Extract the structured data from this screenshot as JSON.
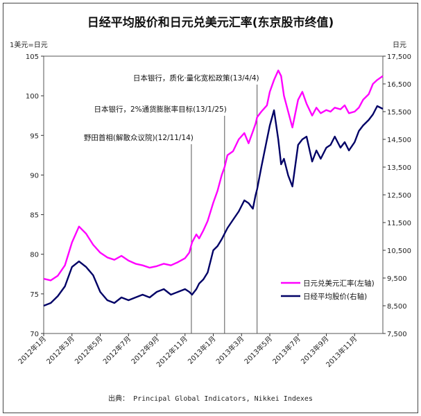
{
  "title": "日经平均股价和日元兑美元汇率(东京股市终值)",
  "source": "出典： Principal Global Indicators, Nikkei Indexes",
  "chart_data": {
    "type": "line",
    "left_axis": {
      "unit": "1美元=日元",
      "min": 70,
      "max": 105,
      "ticks": [
        70,
        75,
        80,
        85,
        90,
        95,
        100,
        105
      ],
      "tick_labels": [
        "70",
        "75",
        "80",
        "85",
        "90",
        "95",
        "100",
        "105"
      ]
    },
    "right_axis": {
      "unit": "日元",
      "min": 7500,
      "max": 17500,
      "ticks": [
        7500,
        8500,
        9500,
        10500,
        11500,
        12500,
        13500,
        14500,
        15500,
        16500,
        17500
      ],
      "tick_labels": [
        "7,500",
        "8,500",
        "9,500",
        "10,500",
        "11,500",
        "12,500",
        "13,500",
        "14,500",
        "15,500",
        "16,500",
        "17,500"
      ]
    },
    "x_axis": {
      "min": 0,
      "max": 24,
      "ticks": [
        0,
        2,
        4,
        6,
        8,
        10,
        12,
        14,
        16,
        18,
        20,
        22
      ],
      "tick_labels": [
        "2012年1月",
        "2012年3月",
        "2012年5月",
        "2012年7月",
        "2012年9月",
        "2012年11月",
        "2013年1月",
        "2013年3月",
        "2013年5月",
        "2013年7月",
        "2013年9月",
        "2013年11月"
      ]
    },
    "annotations": [
      {
        "x": 10.45,
        "label": "野田首相(解散众议院)(12/11/14)"
      },
      {
        "x": 12.8,
        "label": "日本银行，2%通货膨胀率目标(13/1/25)"
      },
      {
        "x": 15.1,
        "label": "日本银行，质化·量化宽松政策(13/4/4)"
      }
    ],
    "series": [
      {
        "name": "日元兑美元汇率(左轴)",
        "axis": "left",
        "color": "#ff00ff",
        "x": [
          0,
          0.5,
          1.0,
          1.5,
          2.0,
          2.5,
          3.0,
          3.5,
          4.0,
          4.5,
          5.0,
          5.5,
          6.0,
          6.5,
          7.0,
          7.5,
          8.0,
          8.5,
          9.0,
          9.5,
          10.0,
          10.3,
          10.5,
          10.8,
          11.0,
          11.3,
          11.6,
          12.0,
          12.3,
          12.6,
          12.8,
          13.0,
          13.4,
          13.8,
          14.2,
          14.5,
          14.8,
          15.0,
          15.1,
          15.4,
          15.8,
          16.0,
          16.3,
          16.6,
          16.8,
          17.0,
          17.3,
          17.6,
          18.0,
          18.3,
          18.6,
          19.0,
          19.3,
          19.6,
          20.0,
          20.3,
          20.6,
          21.0,
          21.3,
          21.6,
          22.0,
          22.3,
          22.6,
          23.0,
          23.3,
          23.6,
          24.0
        ],
        "values": [
          76.9,
          76.7,
          77.3,
          78.6,
          81.5,
          83.5,
          82.6,
          81.2,
          80.2,
          79.6,
          79.3,
          79.8,
          79.2,
          78.8,
          78.6,
          78.3,
          78.5,
          78.8,
          78.6,
          79.0,
          79.5,
          80.2,
          81.5,
          82.5,
          82.0,
          83.0,
          84.2,
          86.5,
          88.0,
          90.0,
          91.0,
          92.5,
          93.0,
          94.5,
          95.3,
          94.0,
          95.5,
          96.5,
          97.3,
          98.0,
          98.8,
          100.5,
          102.0,
          103.2,
          102.5,
          100.0,
          98.0,
          96.0,
          99.5,
          100.5,
          99.0,
          97.5,
          98.5,
          97.8,
          98.2,
          98.0,
          98.5,
          98.3,
          98.8,
          97.8,
          98.0,
          98.5,
          99.5,
          100.2,
          101.5,
          102.0,
          102.5
        ]
      },
      {
        "name": "日经平均股价(右轴)",
        "axis": "right",
        "color": "#000066",
        "x": [
          0,
          0.5,
          1.0,
          1.5,
          2.0,
          2.5,
          3.0,
          3.5,
          4.0,
          4.5,
          5.0,
          5.5,
          6.0,
          6.5,
          7.0,
          7.5,
          8.0,
          8.5,
          9.0,
          9.5,
          10.0,
          10.3,
          10.5,
          10.8,
          11.0,
          11.3,
          11.6,
          12.0,
          12.3,
          12.6,
          12.8,
          13.0,
          13.4,
          13.8,
          14.2,
          14.5,
          14.8,
          15.0,
          15.1,
          15.4,
          15.8,
          16.0,
          16.3,
          16.6,
          16.8,
          17.0,
          17.3,
          17.6,
          18.0,
          18.3,
          18.6,
          19.0,
          19.3,
          19.6,
          20.0,
          20.3,
          20.6,
          21.0,
          21.3,
          21.6,
          22.0,
          22.3,
          22.6,
          23.0,
          23.3,
          23.6,
          24.0
        ],
        "values": [
          8500,
          8600,
          8850,
          9200,
          9900,
          10100,
          9900,
          9600,
          9000,
          8700,
          8600,
          8800,
          8700,
          8800,
          8900,
          8800,
          9000,
          9100,
          8900,
          9000,
          9100,
          9000,
          8900,
          9100,
          9300,
          9450,
          9700,
          10500,
          10650,
          10900,
          11100,
          11300,
          11600,
          11900,
          12300,
          12200,
          12000,
          12500,
          12700,
          13500,
          14500,
          15000,
          15550,
          14500,
          13600,
          13800,
          13200,
          12800,
          14300,
          14500,
          14600,
          13700,
          14100,
          13800,
          14200,
          14300,
          14600,
          14200,
          14400,
          14100,
          14400,
          14800,
          15000,
          15200,
          15400,
          15700,
          15600
        ]
      }
    ]
  }
}
